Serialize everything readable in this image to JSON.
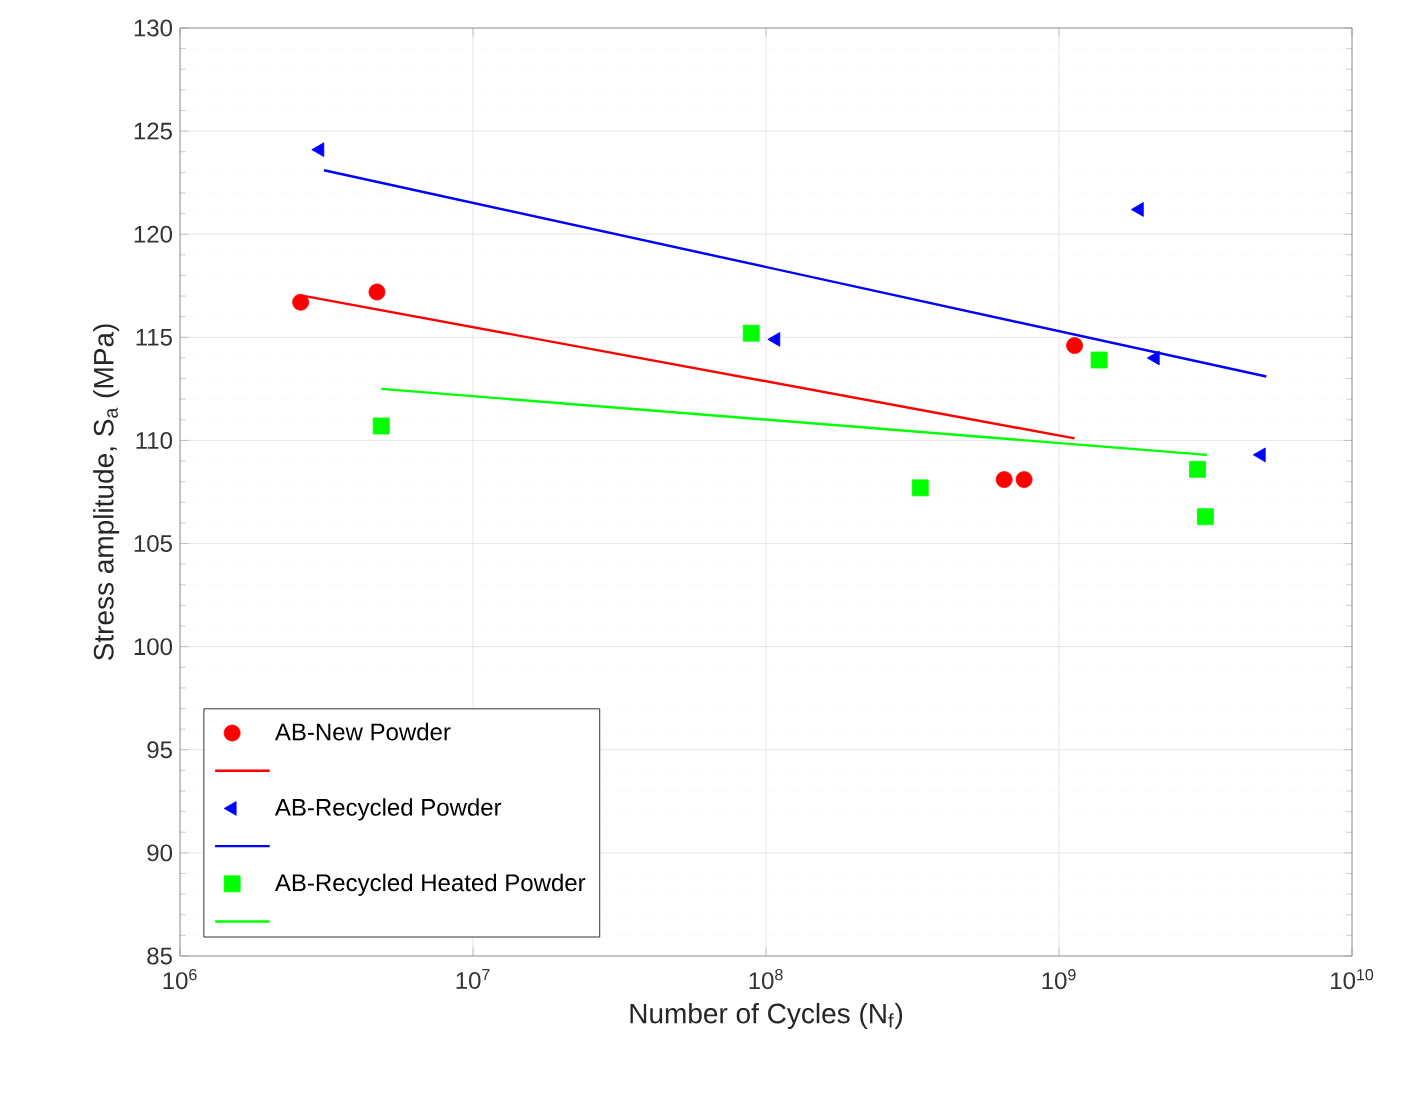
{
  "chart_data": {
    "type": "scatter",
    "xlabel": "Number of Cycles (N$_{f}$)",
    "ylabel": "Stress amplitude, S$_{a}$ (MPa)",
    "log": "x",
    "grid": true,
    "legend": "bottom left",
    "xlim": [
      1000000,
      10000000000
    ],
    "ylim": [
      85,
      130
    ],
    "xticks": [
      {
        "value": 1000000,
        "label": "10$^{6}$"
      },
      {
        "value": 10000000,
        "label": "10$^{7}$"
      },
      {
        "value": 100000000,
        "label": "10$^{8}$"
      },
      {
        "value": 1000000000,
        "label": "10$^{9}$"
      },
      {
        "value": 10000000000,
        "label": "10$^{10}$"
      }
    ],
    "yticks": [
      85,
      90,
      95,
      100,
      105,
      110,
      115,
      120,
      125,
      130
    ],
    "series": [
      {
        "name": "AB-New Powder",
        "marker": "circle",
        "color": "#ff0000",
        "x": [
          2580000,
          4700000,
          650000000,
          760000000,
          1130000000
        ],
        "values": [
          116.7,
          117.2,
          108.1,
          108.1,
          114.6
        ]
      },
      {
        "type": "line",
        "color": "#ff0000",
        "x": [
          2670000,
          1130000000
        ],
        "values": [
          117.0,
          110.1
        ]
      },
      {
        "name": "AB-Recycled Powder",
        "marker": "triangle",
        "color": "#0000ff",
        "x": [
          3000000,
          108000000,
          1880000000,
          2130000000,
          4900000000
        ],
        "values": [
          124.1,
          114.9,
          121.2,
          114.0,
          109.3
        ]
      },
      {
        "type": "line",
        "color": "#0000ff",
        "x": [
          3100000,
          5100000000
        ],
        "values": [
          123.1,
          113.1
        ]
      },
      {
        "name": "AB-Recycled Heated Powder",
        "marker": "square",
        "color": "#00ff00",
        "x": [
          4860000,
          89000000,
          336000000,
          1370000000,
          2970000000,
          3160000000
        ],
        "values": [
          110.7,
          115.2,
          107.7,
          113.9,
          108.6,
          106.3
        ]
      },
      {
        "type": "line",
        "color": "#00ff00",
        "x": [
          4860000,
          3200000000
        ],
        "values": [
          112.5,
          109.3
        ]
      }
    ]
  }
}
